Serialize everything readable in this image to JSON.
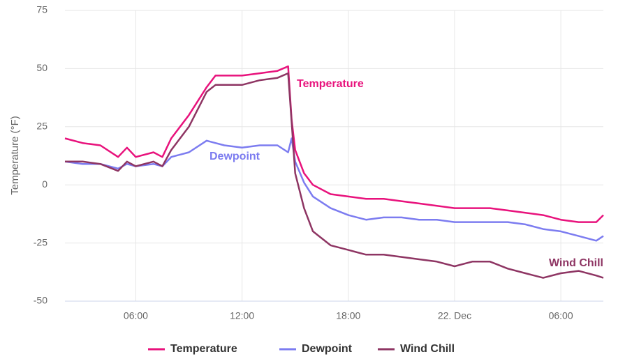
{
  "chart_data": {
    "type": "line",
    "y_label": "Temperature (°F)",
    "x": [
      2,
      3,
      4,
      5,
      5.5,
      6,
      7,
      7.5,
      8,
      9,
      10,
      10.5,
      11,
      12,
      13,
      14,
      14.6,
      14.8,
      15,
      15.5,
      16,
      17,
      18,
      19,
      20,
      21,
      22,
      23,
      24,
      25,
      26,
      27,
      28,
      29,
      30,
      31,
      32,
      32.4
    ],
    "series": [
      {
        "name": "Temperature",
        "color": "#e8127c",
        "values": [
          20,
          18,
          17,
          12,
          16,
          12,
          14,
          12,
          20,
          30,
          42,
          47,
          47,
          47,
          48,
          49,
          51,
          28,
          15,
          5,
          0,
          -4,
          -5,
          -6,
          -6,
          -7,
          -8,
          -9,
          -10,
          -10,
          -10,
          -11,
          -12,
          -13,
          -15,
          -16,
          -16,
          -13
        ]
      },
      {
        "name": "Dewpoint",
        "color": "#7c7cf0",
        "values": [
          10,
          9,
          9,
          7,
          9,
          8,
          9,
          8,
          12,
          14,
          19,
          18,
          17,
          16,
          17,
          17,
          14,
          20,
          10,
          1,
          -5,
          -10,
          -13,
          -15,
          -14,
          -14,
          -15,
          -15,
          -16,
          -16,
          -16,
          -16,
          -17,
          -19,
          -20,
          -22,
          -24,
          -22
        ]
      },
      {
        "name": "Wind Chill",
        "color": "#8e3563",
        "values": [
          10,
          10,
          9,
          6,
          10,
          8,
          10,
          8,
          15,
          25,
          40,
          43,
          43,
          43,
          45,
          46,
          48,
          27,
          5,
          -10,
          -20,
          -26,
          -28,
          -30,
          -30,
          -31,
          -32,
          -33,
          -35,
          -33,
          -33,
          -36,
          -38,
          -40,
          -38,
          -37,
          -39,
          -40
        ]
      }
    ],
    "xlim": [
      2,
      32.4
    ],
    "xticks": [
      {
        "value": 6,
        "label": "06:00"
      },
      {
        "value": 12,
        "label": "12:00"
      },
      {
        "value": 18,
        "label": "18:00"
      },
      {
        "value": 24,
        "label": "22. Dec"
      },
      {
        "value": 30,
        "label": "06:00"
      }
    ],
    "ylim": [
      -50,
      75
    ],
    "yticks": [
      -50,
      -25,
      0,
      25,
      50,
      75
    ],
    "grid": true
  }
}
